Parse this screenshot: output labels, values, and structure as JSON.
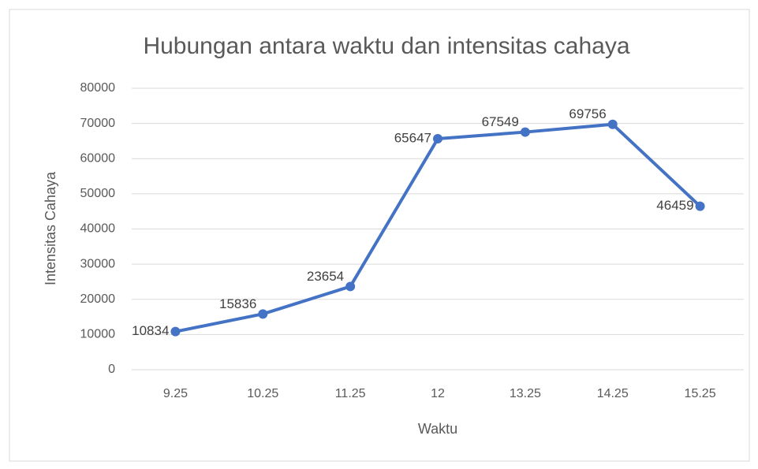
{
  "chart_data": {
    "type": "line",
    "title": "Hubungan antara waktu dan intensitas cahaya",
    "x_label": "Waktu",
    "y_label": "Intensitas Cahaya",
    "categories": [
      "9.25",
      "10.25",
      "11.25",
      "12",
      "13.25",
      "14.25",
      "15.25"
    ],
    "series": [
      {
        "name": "Intensitas Cahaya",
        "color": "#4472c4",
        "values": [
          10834,
          15836,
          23654,
          65647,
          67549,
          69756,
          46459
        ]
      }
    ],
    "ylim": [
      0,
      80000
    ],
    "yticks": [
      0,
      10000,
      20000,
      30000,
      40000,
      50000,
      60000,
      70000,
      80000
    ],
    "grid": true
  }
}
